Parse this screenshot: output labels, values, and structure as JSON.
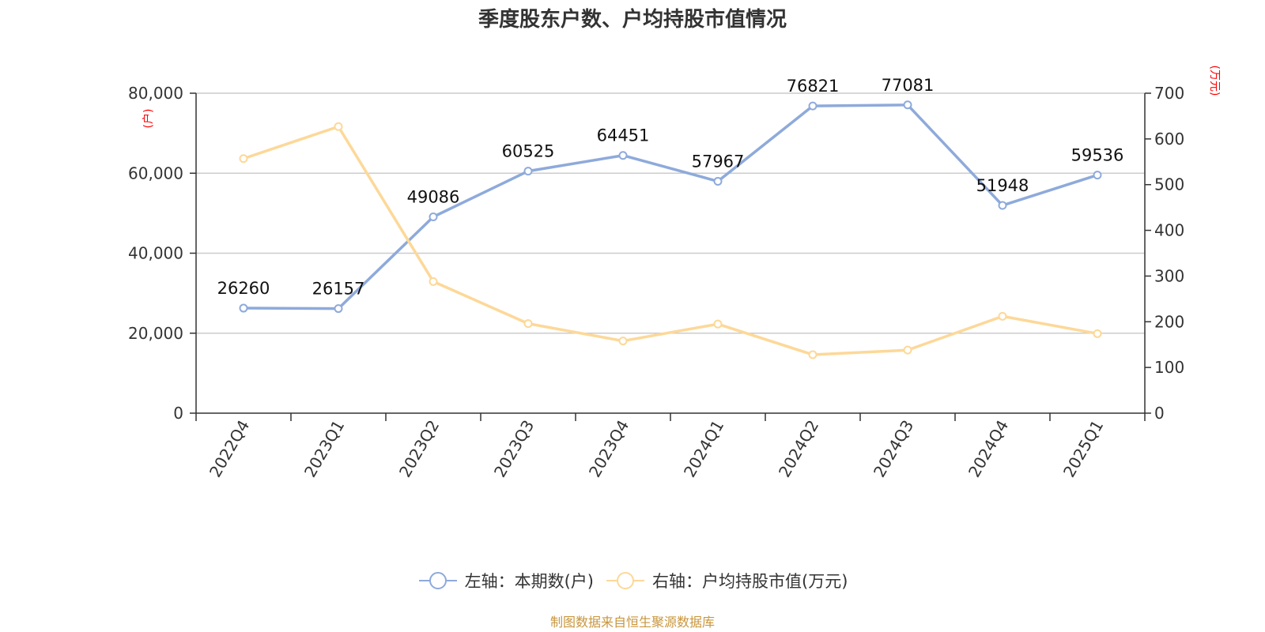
{
  "source_note": "制图数据来自恒生聚源数据库",
  "chart_data": {
    "type": "line",
    "title": "季度股东户数、户均持股市值情况",
    "categories": [
      "2022Q4",
      "2023Q1",
      "2023Q2",
      "2023Q3",
      "2023Q4",
      "2024Q1",
      "2024Q2",
      "2024Q3",
      "2024Q4",
      "2025Q1"
    ],
    "left_axis": {
      "unit_label": "(户)",
      "ylim": [
        0,
        80000
      ],
      "ticks": [
        "0",
        "20,000",
        "40,000",
        "60,000",
        "80,000"
      ],
      "tick_values": [
        0,
        20000,
        40000,
        60000,
        80000
      ]
    },
    "right_axis": {
      "unit_label": "(万元)",
      "ylim": [
        0,
        700
      ],
      "ticks": [
        "0",
        "100",
        "200",
        "300",
        "400",
        "500",
        "600",
        "700"
      ],
      "tick_values": [
        0,
        100,
        200,
        300,
        400,
        500,
        600,
        700
      ]
    },
    "series": [
      {
        "name": "左轴：本期数(户)",
        "axis": "left",
        "color": "#8eaadb",
        "show_labels": true,
        "values": [
          26260,
          26157,
          49086,
          60525,
          64451,
          57967,
          76821,
          77081,
          51948,
          59536
        ]
      },
      {
        "name": "右轴：户均持股市值(万元)",
        "axis": "right",
        "color": "#fdd898",
        "show_labels": false,
        "values": [
          557,
          627,
          288,
          196,
          158,
          195,
          128,
          138,
          212,
          174
        ]
      }
    ],
    "grid": true,
    "legend_position": "bottom-center"
  }
}
